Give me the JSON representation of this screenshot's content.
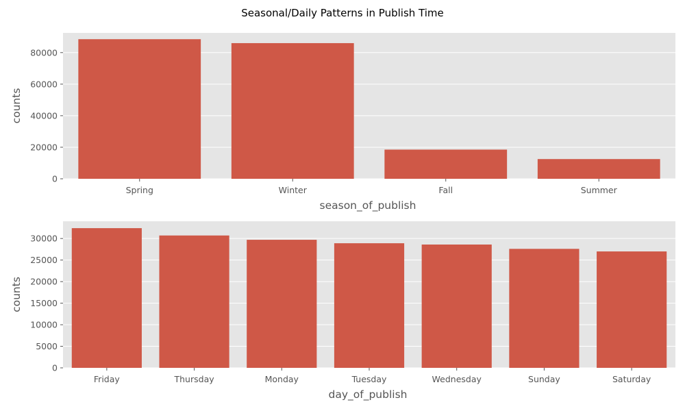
{
  "figure_title": "Seasonal/Daily Patterns in Publish Time",
  "style": {
    "bar_color": "#CF5847",
    "panel_bg": "#E5E5E5",
    "grid_color": "#FFFFFF",
    "text_color": "#555555"
  },
  "chart_data": [
    {
      "type": "bar",
      "categories": [
        "Spring",
        "Winter",
        "Fall",
        "Summer"
      ],
      "values": [
        88500,
        86000,
        18500,
        12500
      ],
      "xlabel": "season_of_publish",
      "ylabel": "counts",
      "ylim": [
        0,
        92500
      ],
      "yticks": [
        0,
        20000,
        40000,
        60000,
        80000
      ],
      "ytick_labels": [
        "0",
        "20000",
        "40000",
        "60000",
        "80000"
      ],
      "grid": true
    },
    {
      "type": "bar",
      "categories": [
        "Friday",
        "Thursday",
        "Monday",
        "Tuesday",
        "Wednesday",
        "Sunday",
        "Saturday"
      ],
      "values": [
        32400,
        30700,
        29700,
        28900,
        28600,
        27600,
        27000
      ],
      "xlabel": "day_of_publish",
      "ylabel": "counts",
      "ylim": [
        0,
        34000
      ],
      "yticks": [
        0,
        5000,
        10000,
        15000,
        20000,
        25000,
        30000
      ],
      "ytick_labels": [
        "0",
        "5000",
        "10000",
        "15000",
        "20000",
        "25000",
        "30000"
      ],
      "grid": true
    }
  ]
}
